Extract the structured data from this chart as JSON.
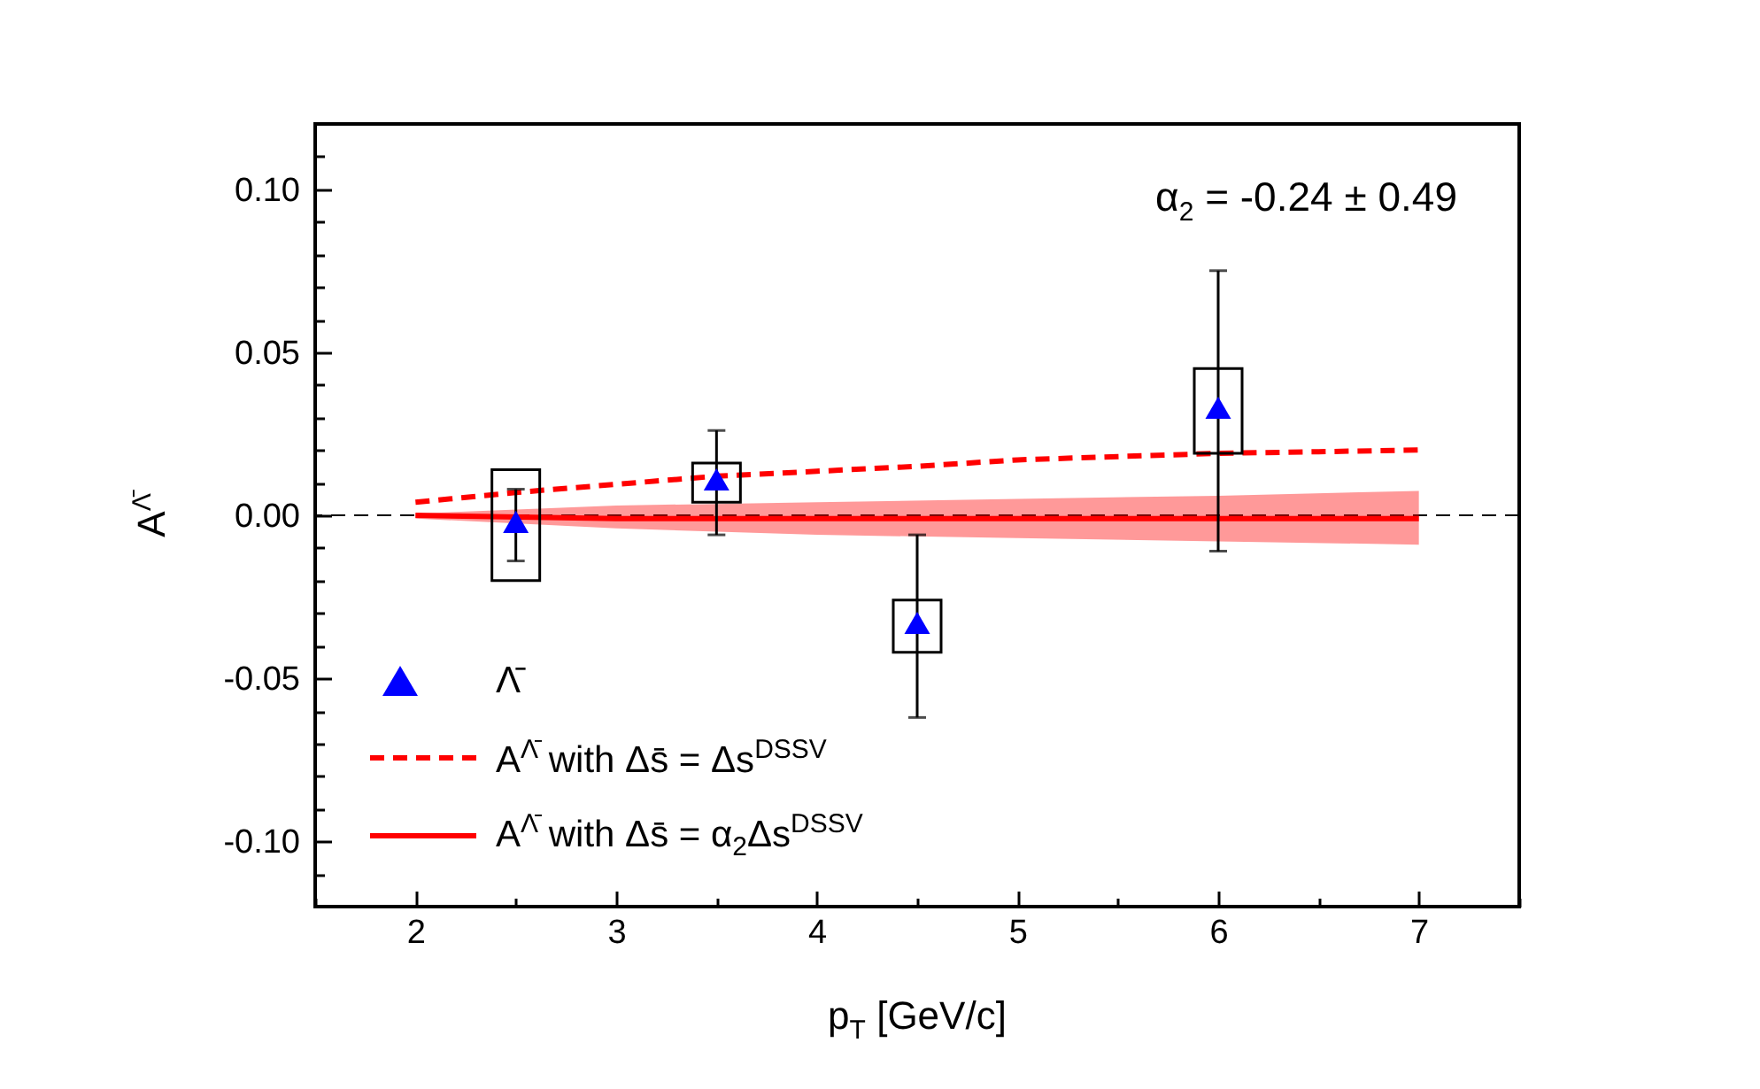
{
  "chart_data": {
    "type": "scatter",
    "xlabel": "p$_{T}$ [GeV/c]",
    "ylabel": "A$^{Λ̄}$",
    "annotations": [
      "α$_{2}$ = -0.24 ± 0.49"
    ],
    "xlim": [
      1.5,
      7.5
    ],
    "ylim": [
      -0.12,
      0.12
    ],
    "legend": "bottom left",
    "grid": false,
    "xticks": [
      {
        "value": 1.5,
        "label": null
      },
      2,
      {
        "value": 2.5,
        "label": null
      },
      3,
      {
        "value": 3.5,
        "label": null
      },
      4,
      {
        "value": 4.5,
        "label": null
      },
      5,
      {
        "value": 5.5,
        "label": null
      },
      6,
      {
        "value": 6.5,
        "label": null
      },
      7,
      {
        "value": 7.5,
        "label": null
      }
    ],
    "yticks": [
      {
        "value": -0.11,
        "label": null
      },
      {
        "value": -0.1,
        "label": "-0.10"
      },
      {
        "value": -0.09,
        "label": null
      },
      {
        "value": -0.08,
        "label": null
      },
      {
        "value": -0.07,
        "label": null
      },
      {
        "value": -0.06,
        "label": null
      },
      {
        "value": -0.05,
        "label": "-0.05"
      },
      {
        "value": -0.04,
        "label": null
      },
      {
        "value": -0.03,
        "label": null
      },
      {
        "value": -0.02,
        "label": null
      },
      {
        "value": -0.01,
        "label": null
      },
      {
        "value": 0,
        "label": "0.00"
      },
      {
        "value": 0.01,
        "label": null
      },
      {
        "value": 0.02,
        "label": null
      },
      {
        "value": 0.03,
        "label": null
      },
      {
        "value": 0.04,
        "label": null
      },
      {
        "value": 0.05,
        "label": "0.05"
      },
      {
        "value": 0.06,
        "label": null
      },
      {
        "value": 0.07,
        "label": null
      },
      {
        "value": 0.08,
        "label": null
      },
      {
        "value": 0.09,
        "label": null
      },
      {
        "value": 0.1,
        "label": "0.10"
      },
      {
        "value": 0.11,
        "label": null
      }
    ],
    "ref_lines": [
      {
        "axis": "y",
        "value": 0,
        "color": "#000000",
        "line_style": "dashed"
      }
    ],
    "series": [
      {
        "type": "line",
        "name": "A$^{Λ̄}$ with Δs̄ = α$_{2}$Δs$^{DSSV}$",
        "color": "#ff0000",
        "line_style": "solid",
        "x": [
          2,
          3,
          4,
          5,
          6,
          7
        ],
        "values": [
          0,
          -0.001,
          -0.001,
          -0.001,
          -0.001,
          -0.001
        ],
        "lower": [
          -0.001,
          -0.004,
          -0.006,
          -0.007,
          -0.008,
          -0.009
        ],
        "upper": [
          0.0005,
          0.003,
          0.004,
          0.005,
          0.006,
          0.0075
        ]
      },
      {
        "type": "line",
        "name": "A$^{Λ̄}$ with Δs̄ = Δs$^{DSSV}$",
        "color": "#ff0000",
        "line_style": "dashed",
        "x": [
          2,
          2.5,
          3,
          3.5,
          4,
          4.5,
          5,
          5.5,
          6,
          6.5,
          7
        ],
        "values": [
          0.004,
          0.007,
          0.0095,
          0.012,
          0.0135,
          0.015,
          0.017,
          0.018,
          0.019,
          0.0195,
          0.02
        ]
      },
      {
        "type": "bar",
        "color": "#000000",
        "x": [
          2.5,
          3.5,
          4.5,
          6
        ],
        "base": [
          -0.02,
          0.004,
          -0.042,
          0.019
        ],
        "values": [
          0.034,
          0.012,
          0.016,
          0.026
        ]
      },
      {
        "name": "Λ̄",
        "color": "#0000ff",
        "marker": "triangle",
        "x": [
          2.5,
          3.5,
          4.5,
          6
        ],
        "values": [
          -0.002,
          0.011,
          -0.033,
          0.033
        ],
        "errors": [
          [
            -0.014,
            0.008
          ],
          [
            -0.006,
            0.026
          ],
          [
            -0.062,
            -0.006
          ],
          [
            -0.011,
            0.075
          ]
        ]
      }
    ]
  }
}
